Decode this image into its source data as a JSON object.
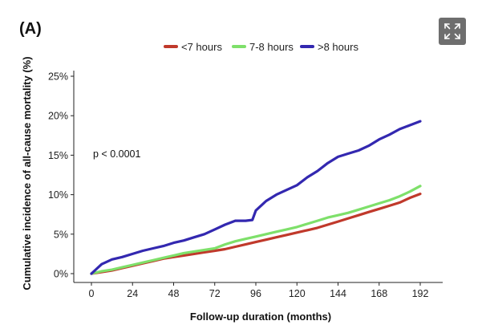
{
  "panel_label": "(A)",
  "expand_icon": "expand-icon",
  "chart_data": {
    "type": "line",
    "title": "",
    "xlabel": "Follow-up duration (months)",
    "ylabel": "Cumulative incidence of all-cause mortality (%)",
    "xlim": [
      0,
      192
    ],
    "ylim": [
      0,
      25
    ],
    "x_ticks": [
      0,
      24,
      48,
      72,
      96,
      120,
      144,
      168,
      192
    ],
    "x_tick_labels": [
      "0",
      "24",
      "48",
      "72",
      "96",
      "120",
      "144",
      "168",
      "192"
    ],
    "y_ticks": [
      0,
      5,
      10,
      15,
      20,
      25
    ],
    "y_tick_labels": [
      "0%",
      "5%",
      "10%",
      "15%",
      "20%",
      "25%"
    ],
    "grid": false,
    "legend_position": "top",
    "annotation": "p < 0.0001",
    "series": [
      {
        "name": "<7 hours",
        "color": "#c0392b",
        "x": [
          0,
          6,
          12,
          18,
          24,
          30,
          36,
          42,
          48,
          54,
          60,
          66,
          72,
          78,
          84,
          90,
          96,
          102,
          108,
          114,
          120,
          126,
          132,
          138,
          144,
          150,
          156,
          162,
          168,
          174,
          180,
          186,
          192
        ],
        "y": [
          0,
          0.2,
          0.4,
          0.7,
          1.0,
          1.3,
          1.6,
          1.9,
          2.1,
          2.3,
          2.5,
          2.7,
          2.9,
          3.1,
          3.4,
          3.7,
          4.0,
          4.3,
          4.6,
          4.9,
          5.2,
          5.5,
          5.8,
          6.2,
          6.6,
          7.0,
          7.4,
          7.8,
          8.2,
          8.6,
          9.0,
          9.6,
          10.1
        ]
      },
      {
        "name": "7-8 hours",
        "color": "#7ee06a",
        "x": [
          0,
          6,
          12,
          18,
          24,
          30,
          36,
          42,
          48,
          54,
          60,
          66,
          72,
          78,
          84,
          90,
          96,
          102,
          108,
          114,
          120,
          126,
          132,
          138,
          144,
          150,
          156,
          162,
          168,
          174,
          180,
          186,
          192
        ],
        "y": [
          0,
          0.3,
          0.5,
          0.8,
          1.1,
          1.4,
          1.7,
          2.0,
          2.3,
          2.6,
          2.8,
          3.0,
          3.2,
          3.7,
          4.1,
          4.4,
          4.7,
          5.0,
          5.3,
          5.6,
          5.9,
          6.3,
          6.7,
          7.1,
          7.4,
          7.7,
          8.1,
          8.5,
          8.9,
          9.3,
          9.8,
          10.4,
          11.1
        ]
      },
      {
        "name": ">8 hours",
        "color": "#3328b0",
        "x": [
          0,
          6,
          12,
          18,
          24,
          30,
          36,
          42,
          48,
          54,
          60,
          66,
          72,
          78,
          84,
          90,
          94,
          96,
          102,
          108,
          114,
          120,
          126,
          132,
          138,
          144,
          150,
          156,
          162,
          168,
          174,
          180,
          186,
          192
        ],
        "y": [
          0,
          1.2,
          1.8,
          2.1,
          2.5,
          2.9,
          3.2,
          3.5,
          3.9,
          4.2,
          4.6,
          5.0,
          5.6,
          6.2,
          6.7,
          6.7,
          6.8,
          8.0,
          9.2,
          10.0,
          10.6,
          11.2,
          12.2,
          13.0,
          14.0,
          14.8,
          15.2,
          15.6,
          16.2,
          17.0,
          17.6,
          18.3,
          18.8,
          19.3
        ]
      }
    ]
  }
}
